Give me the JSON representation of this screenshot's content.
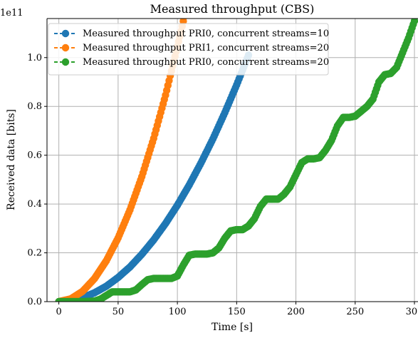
{
  "chart_data": {
    "type": "scatter",
    "title": "Measured throughput (CBS)",
    "xlabel": "Time [s]",
    "ylabel": "Received data [bits]",
    "y_offset_label": "1e11",
    "xlim": [
      -10,
      303
    ],
    "ylim": [
      0,
      1.16
    ],
    "y_scale_note": "values in units of 1e11 bits",
    "xticks": [
      0,
      50,
      100,
      150,
      200,
      250,
      300
    ],
    "xtick_labels": [
      "0",
      "50",
      "100",
      "150",
      "200",
      "250",
      "300"
    ],
    "yticks": [
      0.0,
      0.2,
      0.4,
      0.6,
      0.8,
      1.0
    ],
    "ytick_labels": [
      "0.0",
      "0.2",
      "0.4",
      "0.6",
      "0.8",
      "1.0"
    ],
    "grid": true,
    "legend_position": "upper-left",
    "series": [
      {
        "name": "Measured throughput PRI0, concurrent streams=10",
        "color": "#1f77b4",
        "x": [
          0,
          10,
          20,
          30,
          40,
          50,
          60,
          70,
          80,
          90,
          100,
          110,
          120,
          130,
          140,
          150,
          160
        ],
        "y": [
          0.0,
          0.004,
          0.016,
          0.036,
          0.063,
          0.099,
          0.142,
          0.194,
          0.253,
          0.32,
          0.395,
          0.478,
          0.569,
          0.667,
          0.774,
          0.888,
          1.01
        ]
      },
      {
        "name": "Measured throughput PRI1, concurrent streams=20",
        "color": "#ff7f0e",
        "x": [
          0,
          10,
          20,
          30,
          40,
          50,
          60,
          70,
          80,
          90,
          100,
          106
        ],
        "y": [
          0.0,
          0.011,
          0.042,
          0.094,
          0.167,
          0.261,
          0.376,
          0.512,
          0.669,
          0.846,
          1.045,
          1.17
        ]
      },
      {
        "name": "Measured throughput PRI0, concurrent streams=20",
        "color": "#2ca02c",
        "x": [
          0,
          20,
          30,
          35,
          40,
          45,
          50,
          60,
          65,
          70,
          75,
          80,
          90,
          95,
          100,
          105,
          110,
          115,
          120,
          125,
          130,
          135,
          140,
          145,
          150,
          155,
          160,
          165,
          170,
          175,
          180,
          185,
          190,
          195,
          200,
          205,
          210,
          215,
          220,
          225,
          230,
          235,
          240,
          245,
          250,
          255,
          260,
          265,
          270,
          275,
          280,
          285,
          290,
          295,
          300
        ],
        "y": [
          0.0,
          0.0,
          0.002,
          0.01,
          0.025,
          0.04,
          0.04,
          0.04,
          0.048,
          0.07,
          0.09,
          0.095,
          0.095,
          0.095,
          0.105,
          0.15,
          0.19,
          0.195,
          0.195,
          0.195,
          0.2,
          0.22,
          0.26,
          0.29,
          0.295,
          0.295,
          0.31,
          0.34,
          0.39,
          0.42,
          0.42,
          0.42,
          0.44,
          0.47,
          0.52,
          0.57,
          0.585,
          0.585,
          0.59,
          0.62,
          0.66,
          0.72,
          0.755,
          0.755,
          0.76,
          0.78,
          0.8,
          0.83,
          0.9,
          0.93,
          0.935,
          0.96,
          1.02,
          1.08,
          1.15
        ]
      }
    ]
  }
}
